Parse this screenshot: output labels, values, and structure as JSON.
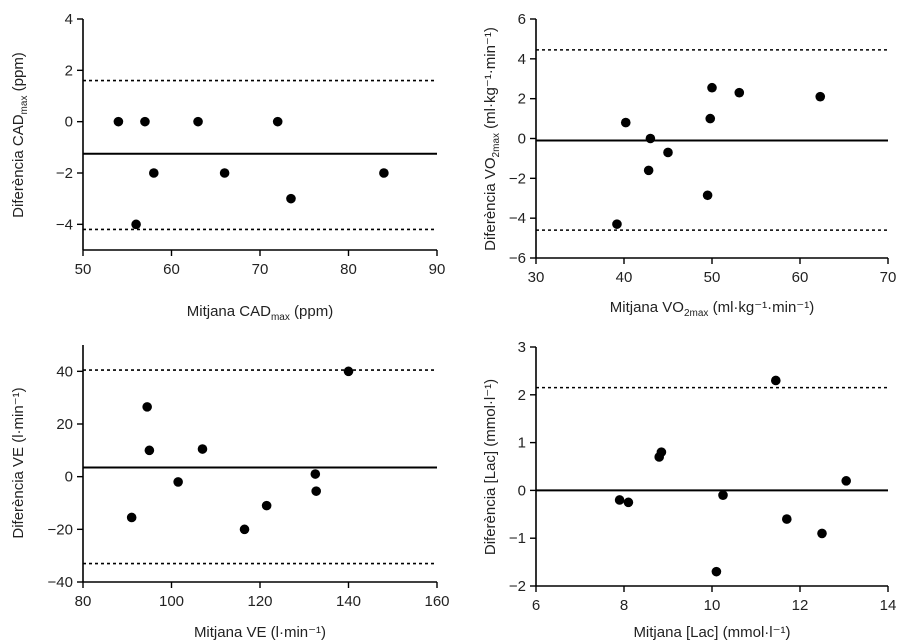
{
  "chart_data": [
    {
      "type": "scatter",
      "xlabel": "Mitjana CAD",
      "xlabel_sub": "max",
      "xlabel_suffix": " (ppm)",
      "ylabel": "Diferència CAD",
      "ylabel_sub": "max",
      "ylabel_suffix": " (ppm)",
      "xlim": [
        50,
        90
      ],
      "ylim": [
        -5,
        4
      ],
      "xticks": [
        "50",
        "60",
        "70",
        "80",
        "90"
      ],
      "yticks": [
        "4",
        "2",
        "0",
        "−2",
        "−4"
      ],
      "points": [
        {
          "x": 54,
          "y": 0
        },
        {
          "x": 56,
          "y": -4
        },
        {
          "x": 57,
          "y": 0
        },
        {
          "x": 58,
          "y": -2
        },
        {
          "x": 63,
          "y": 0
        },
        {
          "x": 66,
          "y": -2
        },
        {
          "x": 72,
          "y": 0
        },
        {
          "x": 73.5,
          "y": -3
        },
        {
          "x": 84,
          "y": -2
        }
      ],
      "mean_line": -1.25,
      "limits": [
        1.6,
        -4.2
      ]
    },
    {
      "type": "scatter",
      "xlabel": "Mitjana VO",
      "xlabel_sub": "2max",
      "xlabel_suffix": " (ml·kg⁻¹·min⁻¹)",
      "ylabel": "Diferència VO",
      "ylabel_sub": "2max",
      "ylabel_suffix": " (ml·kg⁻¹·min⁻¹)",
      "xlim": [
        30,
        70
      ],
      "ylim": [
        -6,
        6
      ],
      "xticks": [
        "30",
        "40",
        "50",
        "60",
        "70"
      ],
      "yticks": [
        "6",
        "4",
        "2",
        "0",
        "−2",
        "−4",
        "−6"
      ],
      "points": [
        {
          "x": 39.2,
          "y": -4.3
        },
        {
          "x": 40.2,
          "y": 0.8
        },
        {
          "x": 42.8,
          "y": -1.6
        },
        {
          "x": 43,
          "y": 0
        },
        {
          "x": 45,
          "y": -0.7
        },
        {
          "x": 49.5,
          "y": -2.85
        },
        {
          "x": 49.8,
          "y": 1
        },
        {
          "x": 50,
          "y": 2.55
        },
        {
          "x": 53.1,
          "y": 2.3
        },
        {
          "x": 62.3,
          "y": 2.1
        }
      ],
      "mean_line": -0.1,
      "limits": [
        4.45,
        -4.6
      ]
    },
    {
      "type": "scatter",
      "xlabel": "Mitjana VE (l·min⁻¹)",
      "ylabel": "Diferència VE (l·min⁻¹)",
      "xlim": [
        80,
        160
      ],
      "ylim": [
        -40,
        50
      ],
      "xticks": [
        "80",
        "100",
        "120",
        "140",
        "160"
      ],
      "yticks": [
        "40",
        "20",
        "0",
        "−20",
        "−40"
      ],
      "points": [
        {
          "x": 91,
          "y": -15.5
        },
        {
          "x": 94.5,
          "y": 26.5
        },
        {
          "x": 95,
          "y": 10
        },
        {
          "x": 101.5,
          "y": -2
        },
        {
          "x": 107,
          "y": 10.5
        },
        {
          "x": 116.5,
          "y": -20
        },
        {
          "x": 121.5,
          "y": -11
        },
        {
          "x": 132.5,
          "y": 1
        },
        {
          "x": 132.7,
          "y": -5.5
        },
        {
          "x": 140,
          "y": 40
        }
      ],
      "mean_line": 3.5,
      "limits": [
        40.5,
        -33
      ]
    },
    {
      "type": "scatter",
      "xlabel": "Mitjana [Lac] (mmol·l⁻¹)",
      "ylabel": "Diferència [Lac] (mmol·l⁻¹)",
      "xlim": [
        6,
        14
      ],
      "ylim": [
        -2,
        3
      ],
      "xticks": [
        "6",
        "8",
        "10",
        "12",
        "14"
      ],
      "yticks": [
        "3",
        "2",
        "1",
        "0",
        "−1",
        "−2"
      ],
      "points": [
        {
          "x": 7.9,
          "y": -0.2
        },
        {
          "x": 8.1,
          "y": -0.25
        },
        {
          "x": 8.8,
          "y": 0.7
        },
        {
          "x": 8.85,
          "y": 0.8
        },
        {
          "x": 10.1,
          "y": -1.7
        },
        {
          "x": 10.25,
          "y": -0.1
        },
        {
          "x": 11.45,
          "y": 2.3
        },
        {
          "x": 11.7,
          "y": -0.6
        },
        {
          "x": 12.5,
          "y": -0.9
        },
        {
          "x": 13.05,
          "y": 0.2
        }
      ],
      "mean_line": 0,
      "limits": [
        2.15
      ]
    }
  ]
}
